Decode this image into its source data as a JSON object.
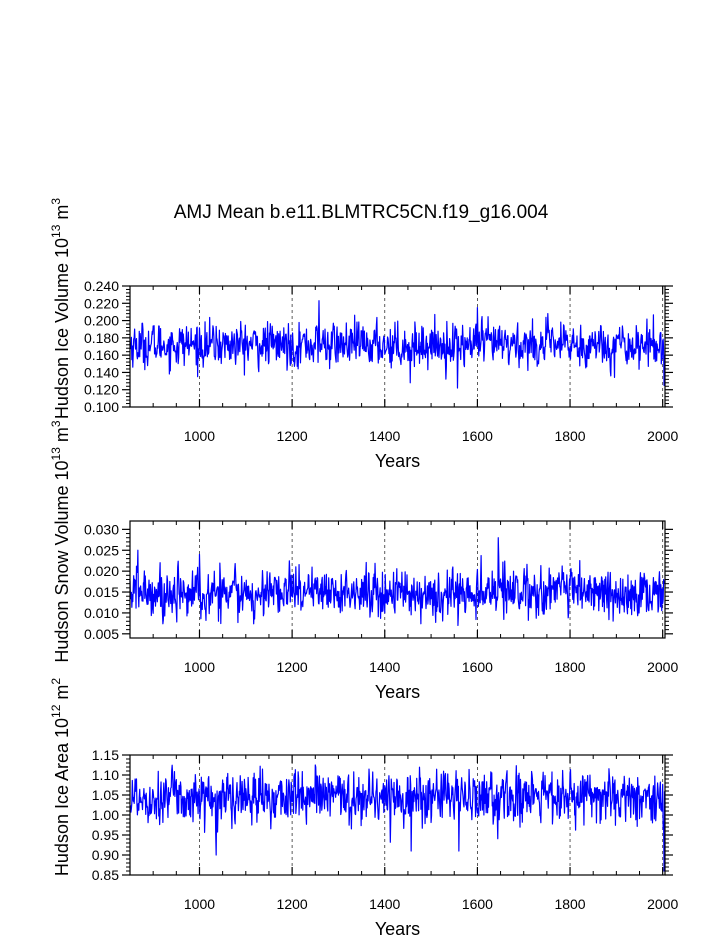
{
  "title": "AMJ Mean b.e11.BLMTRC5CN.f19_g16.004",
  "chart_data": [
    {
      "type": "line",
      "ylabel": "Hudson Ice Volume",
      "yunit_base": "10",
      "yunit_exp": "13",
      "yunit_tail": "m",
      "yunit_tail_exp": "3",
      "xlabel": "Years",
      "xlim": [
        850,
        2005
      ],
      "ylim": [
        0.1,
        0.24
      ],
      "xticks": [
        "1000",
        "1200",
        "1400",
        "1600",
        "1800",
        "2000"
      ],
      "xtick_values": [
        1000,
        1200,
        1400,
        1600,
        1800,
        2000
      ],
      "yticks": [
        "0.100",
        "0.120",
        "0.140",
        "0.160",
        "0.180",
        "0.200",
        "0.220",
        "0.240"
      ],
      "ytick_values": [
        0.1,
        0.12,
        0.14,
        0.16,
        0.18,
        0.2,
        0.22,
        0.24
      ],
      "grid": "dashed vertical lines at major x ticks",
      "series": [
        {
          "name": "Hudson Ice Volume",
          "color": "#0000ff",
          "mean": 0.172,
          "sd": 0.012,
          "min": 0.122,
          "max": 0.223,
          "range": [
            850,
            2005
          ],
          "spikes": [
            [
              1258,
              0.223
            ],
            [
              1600,
              0.215
            ],
            [
              1557,
              0.122
            ],
            [
              2003,
              0.125
            ],
            [
              1455,
              0.128
            ]
          ]
        }
      ]
    },
    {
      "type": "line",
      "ylabel": "Hudson Snow Volume",
      "yunit_base": "10",
      "yunit_exp": "13",
      "yunit_tail": "m",
      "yunit_tail_exp": "3",
      "xlabel": "Years",
      "xlim": [
        850,
        2005
      ],
      "ylim": [
        0.004,
        0.032
      ],
      "xticks": [
        "1000",
        "1200",
        "1400",
        "1600",
        "1800",
        "2000"
      ],
      "xtick_values": [
        1000,
        1200,
        1400,
        1600,
        1800,
        2000
      ],
      "yticks": [
        "0.005",
        "0.010",
        "0.015",
        "0.020",
        "0.025",
        "0.030"
      ],
      "ytick_values": [
        0.005,
        0.01,
        0.015,
        0.02,
        0.025,
        0.03
      ],
      "grid": "dashed vertical lines at major x ticks",
      "series": [
        {
          "name": "Hudson Snow Volume",
          "color": "#0000ff",
          "mean": 0.015,
          "sd": 0.0028,
          "min": 0.007,
          "max": 0.028,
          "range": [
            850,
            2005
          ],
          "spikes": [
            [
              1645,
              0.028
            ],
            [
              867,
              0.025
            ],
            [
              1000,
              0.024
            ],
            [
              1558,
              0.007
            ]
          ]
        }
      ]
    },
    {
      "type": "line",
      "ylabel": "Hudson Ice Area",
      "yunit_base": "10",
      "yunit_exp": "12",
      "yunit_tail": "m",
      "yunit_tail_exp": "2",
      "xlabel": "Years",
      "xlim": [
        850,
        2005
      ],
      "ylim": [
        0.85,
        1.15
      ],
      "xticks": [
        "1000",
        "1200",
        "1400",
        "1600",
        "1800",
        "2000"
      ],
      "xtick_values": [
        1000,
        1200,
        1400,
        1600,
        1800,
        2000
      ],
      "yticks": [
        "0.85",
        "0.90",
        "0.95",
        "1.00",
        "1.05",
        "1.10",
        "1.15"
      ],
      "ytick_values": [
        0.85,
        0.9,
        0.95,
        1.0,
        1.05,
        1.1,
        1.15
      ],
      "grid": "dashed vertical lines at major x ticks",
      "series": [
        {
          "name": "Hudson Ice Area",
          "color": "#0000ff",
          "mean": 1.045,
          "sd": 0.032,
          "min": 0.86,
          "max": 1.125,
          "range": [
            850,
            2005
          ],
          "spikes": [
            [
              1036,
              0.9
            ],
            [
              1457,
              0.91
            ],
            [
              1560,
              0.91
            ],
            [
              2003,
              0.86
            ],
            [
              1250,
              1.125
            ]
          ]
        }
      ]
    }
  ]
}
